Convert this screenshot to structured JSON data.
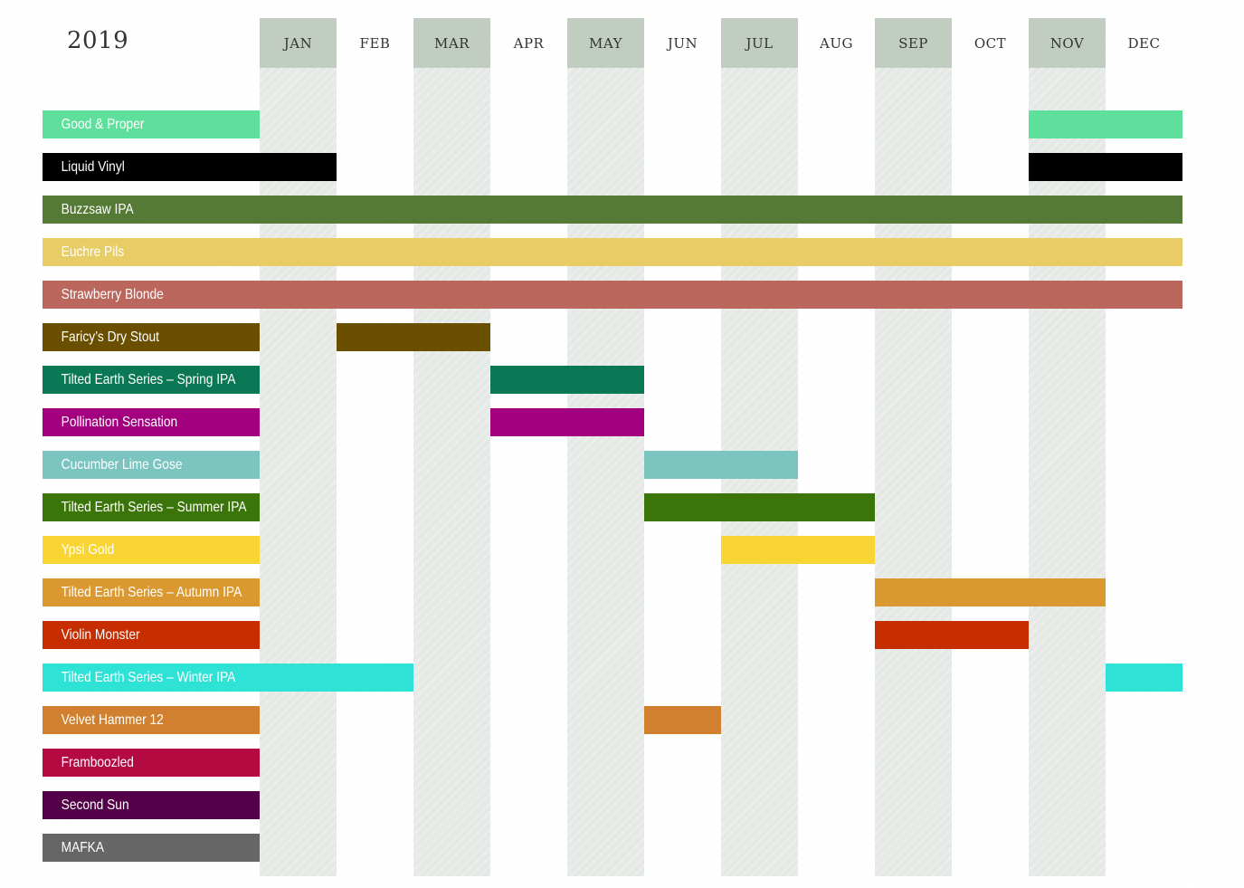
{
  "title": "2019",
  "chart_data": {
    "type": "gantt",
    "year_label": "2019",
    "months": [
      "JAN",
      "FEB",
      "MAR",
      "APR",
      "MAY",
      "JUN",
      "JUL",
      "AUG",
      "SEP",
      "OCT",
      "NOV",
      "DEC"
    ],
    "shaded_months": [
      1,
      3,
      5,
      7,
      9,
      11
    ],
    "series": [
      {
        "name": "Good & Proper",
        "color": "#5ee09c",
        "ranges": [
          [
            11,
            12
          ]
        ]
      },
      {
        "name": "Liquid Vinyl",
        "color": "#000000",
        "ranges": [
          [
            1,
            1
          ],
          [
            11,
            12
          ]
        ]
      },
      {
        "name": "Buzzsaw IPA",
        "color": "#557a35",
        "ranges": [
          [
            1,
            12
          ]
        ]
      },
      {
        "name": "Euchre Pils",
        "color": "#e8cd66",
        "ranges": [
          [
            1,
            12
          ]
        ]
      },
      {
        "name": "Strawberry Blonde",
        "color": "#bb675d",
        "ranges": [
          [
            1,
            12
          ]
        ]
      },
      {
        "name": "Faricy’s Dry Stout",
        "color": "#6b4f00",
        "ranges": [
          [
            2,
            3
          ]
        ]
      },
      {
        "name": "Tilted Earth Series – Spring IPA",
        "color": "#0b7855",
        "ranges": [
          [
            4,
            5
          ]
        ]
      },
      {
        "name": "Pollination Sensation",
        "color": "#a30080",
        "ranges": [
          [
            4,
            5
          ]
        ]
      },
      {
        "name": "Cucumber Lime Gose",
        "color": "#7bc4c0",
        "ranges": [
          [
            6,
            7
          ]
        ]
      },
      {
        "name": "Tilted Earth Series – Summer IPA",
        "color": "#3b7509",
        "ranges": [
          [
            6,
            8
          ]
        ]
      },
      {
        "name": "Ypsi Gold",
        "color": "#f9d533",
        "ranges": [
          [
            7,
            8
          ]
        ]
      },
      {
        "name": "Tilted Earth Series – Autumn IPA",
        "color": "#da9830",
        "ranges": [
          [
            9,
            11
          ]
        ]
      },
      {
        "name": "Violin Monster",
        "color": "#c62d00",
        "ranges": [
          [
            9,
            10
          ]
        ]
      },
      {
        "name": "Tilted Earth Series – Winter IPA",
        "color": "#2ee3d6",
        "ranges": [
          [
            1,
            2
          ],
          [
            12,
            12
          ]
        ]
      },
      {
        "name": "Velvet Hammer 12",
        "color": "#d0802e",
        "ranges": [
          [
            6,
            6
          ]
        ]
      },
      {
        "name": "Framboozled",
        "color": "#b30a42",
        "ranges": []
      },
      {
        "name": "Second Sun",
        "color": "#540049",
        "ranges": []
      },
      {
        "name": "MAFKA",
        "color": "#666666",
        "ranges": []
      }
    ]
  }
}
